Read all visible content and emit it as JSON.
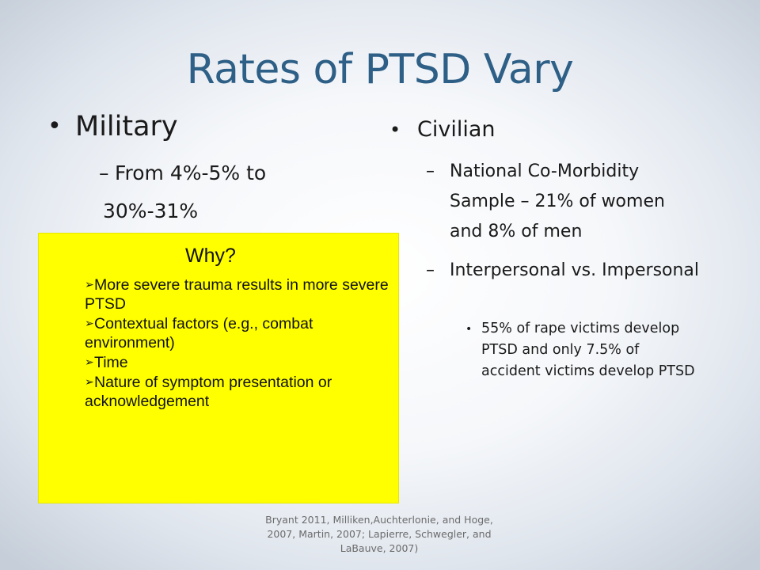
{
  "slide": {
    "title": "Rates of PTSD Vary",
    "left": {
      "heading": "Military",
      "sub_line1": "From 4%-5% to",
      "sub_line2": "30%-31%"
    },
    "why_box": {
      "title": "Why?",
      "background_color": "#ffff00",
      "items": [
        "More severe trauma results in more severe PTSD",
        "Contextual factors (e.g., combat environment)",
        "Time",
        "Nature of symptom presentation or acknowledgement"
      ]
    },
    "right": {
      "heading": "Civilian",
      "sub1": "National Co-Morbidity Sample – 21% of women and 8% of men",
      "sub2": "Interpersonal vs. Impersonal",
      "sub2_detail": "55% of rape victims develop PTSD and only 7.5% of accident victims develop PTSD"
    },
    "citation": "Bryant 2011, Milliken,Auchterlonie, and Hoge, 2007, Martin, 2007; Lapierre, Schwegler, and LaBauve, 2007)",
    "colors": {
      "title": "#2e5f86",
      "why_box": "#ffff00"
    }
  }
}
